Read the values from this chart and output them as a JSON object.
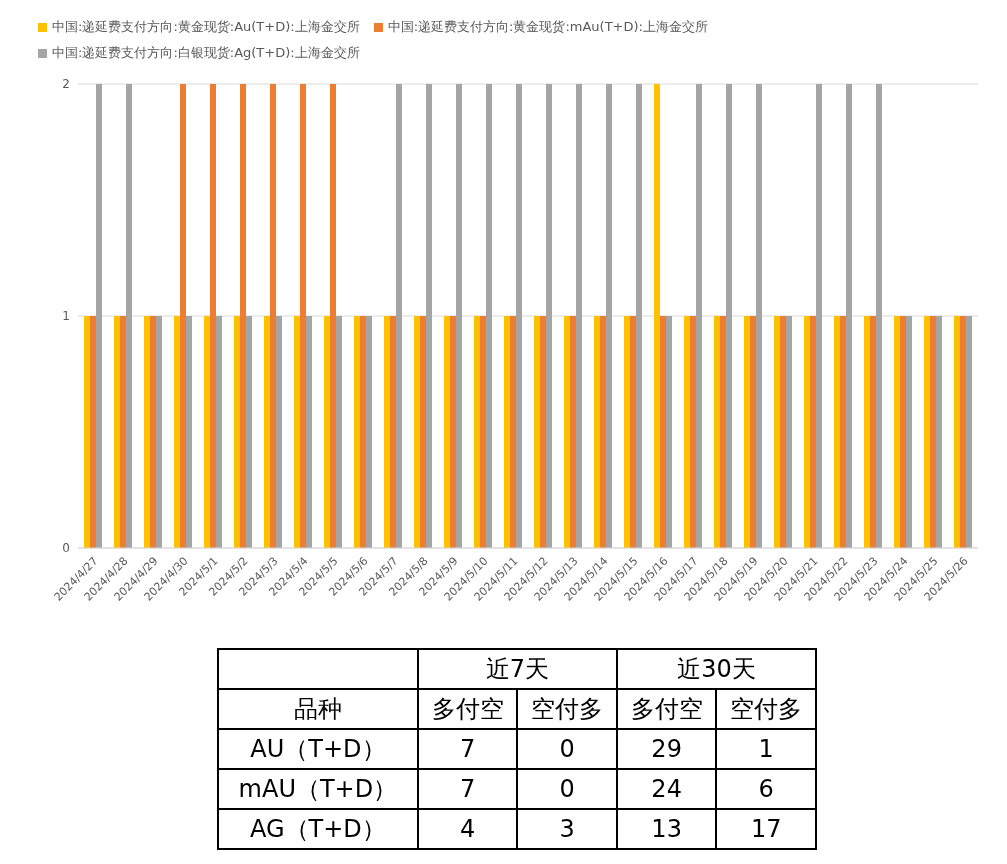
{
  "chart_data": [
    {
      "type": "bar",
      "categories": [
        "2024/4/27",
        "2024/4/28",
        "2024/4/29",
        "2024/4/30",
        "2024/5/1",
        "2024/5/2",
        "2024/5/3",
        "2024/5/4",
        "2024/5/5",
        "2024/5/6",
        "2024/5/7",
        "2024/5/8",
        "2024/5/9",
        "2024/5/10",
        "2024/5/11",
        "2024/5/12",
        "2024/5/13",
        "2024/5/14",
        "2024/5/15",
        "2024/5/16",
        "2024/5/17",
        "2024/5/18",
        "2024/5/19",
        "2024/5/20",
        "2024/5/21",
        "2024/5/22",
        "2024/5/23",
        "2024/5/24",
        "2024/5/25",
        "2024/5/26"
      ],
      "series": [
        {
          "name": "中国:递延费支付方向:黄金现货:Au(T+D):上海金交所",
          "color": "#ffc000",
          "values": [
            1,
            1,
            1,
            1,
            1,
            1,
            1,
            1,
            1,
            1,
            1,
            1,
            1,
            1,
            1,
            1,
            1,
            1,
            1,
            2,
            1,
            1,
            1,
            1,
            1,
            1,
            1,
            1,
            1,
            1
          ]
        },
        {
          "name": "中国:递延费支付方向:黄金现货:mAu(T+D):上海金交所",
          "color": "#ed7d31",
          "values": [
            1,
            1,
            1,
            2,
            2,
            2,
            2,
            2,
            2,
            1,
            1,
            1,
            1,
            1,
            1,
            1,
            1,
            1,
            1,
            1,
            1,
            1,
            1,
            1,
            1,
            1,
            1,
            1,
            1,
            1
          ]
        },
        {
          "name": "中国:递延费支付方向:白银现货:Ag(T+D):上海金交所",
          "color": "#a5a5a5",
          "values": [
            2,
            2,
            1,
            1,
            1,
            1,
            1,
            1,
            1,
            1,
            2,
            2,
            2,
            2,
            2,
            2,
            2,
            2,
            2,
            1,
            2,
            2,
            2,
            1,
            2,
            2,
            2,
            1,
            1,
            1
          ]
        }
      ],
      "ylim": [
        0,
        2
      ],
      "yticks": [
        0,
        1,
        2
      ],
      "grid": "y",
      "legend": "top left"
    },
    {
      "type": "heatmap",
      "ylabel": "品种",
      "data_labels": true,
      "annotations": [
        "近7天",
        "近30天"
      ],
      "categories": [
        "多付空",
        "空付多",
        "多付空",
        "空付多"
      ],
      "y_categories": [
        "AU（T+D）",
        "mAU（T+D）",
        "AG（T+D）"
      ],
      "cells": [
        [
          7,
          0,
          29,
          1
        ],
        [
          7,
          0,
          24,
          6
        ],
        [
          4,
          3,
          13,
          17
        ]
      ]
    }
  ]
}
